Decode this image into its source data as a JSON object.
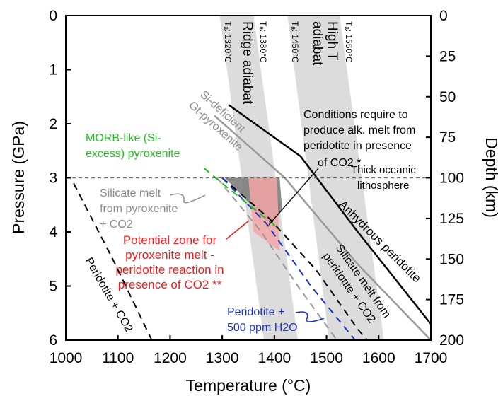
{
  "chart_data": {
    "type": "line",
    "xlabel": "Temperature (°C)",
    "ylabel": "Pressure (GPa)",
    "y2label": "Depth (km)",
    "xlim": [
      1000,
      1700
    ],
    "ylim": [
      0,
      6
    ],
    "y2lim": [
      0,
      200
    ],
    "x_ticks": [
      "1000",
      "1100",
      "1200",
      "1300",
      "1400",
      "1500",
      "1600",
      "1700"
    ],
    "y_ticks": [
      "0",
      "1",
      "2",
      "3",
      "4",
      "5",
      "6"
    ],
    "y2_ticks": [
      "0",
      "25",
      "50",
      "75",
      "100",
      "125",
      "150",
      "175",
      "200"
    ],
    "adiabat_bands": [
      {
        "label": "Ridge adiabat",
        "tp_labels": [
          "Tₐ: 1320°C",
          "Tₐ: 1380°C"
        ],
        "top": [
          1295,
          1360
        ],
        "bottom": [
          1380,
          1445
        ]
      },
      {
        "label": "High T adiabat",
        "tp_labels": [
          "Tₐ: 1450°C",
          "Tₐ: 1550°C"
        ],
        "top": [
          1425,
          1525
        ],
        "bottom": [
          1505,
          1610
        ]
      }
    ],
    "series": [
      {
        "name": "Anhydrous peridotite",
        "color": "#000000",
        "style": "solid",
        "points": [
          [
            1312,
            1.65
          ],
          [
            1450,
            2.6
          ],
          [
            1560,
            4.0
          ],
          [
            1700,
            5.7
          ]
        ]
      },
      {
        "name": "Si-deficient Gt-pyroxenite",
        "color": "#999999",
        "style": "solid",
        "points": [
          [
            1285,
            1.85
          ],
          [
            1420,
            3.0
          ],
          [
            1560,
            4.6
          ],
          [
            1700,
            6.0
          ]
        ]
      },
      {
        "name": "Silicate melt from peridotite + CO2",
        "color": "#000000",
        "style": "dashed",
        "points": [
          [
            1300,
            3.0
          ],
          [
            1390,
            3.75
          ],
          [
            1480,
            4.7
          ],
          [
            1560,
            5.8
          ],
          [
            1578,
            6.0
          ]
        ]
      },
      {
        "name": "Peridotite + 500 ppm H2O",
        "color": "#1a33cc",
        "style": "dashed",
        "points": [
          [
            1300,
            3.0
          ],
          [
            1385,
            3.85
          ],
          [
            1470,
            5.0
          ],
          [
            1555,
            6.0
          ]
        ]
      },
      {
        "name": "Silicate melt from pyroxenite + CO2",
        "color": "#999999",
        "style": "dashed",
        "points": [
          [
            1290,
            3.0
          ],
          [
            1375,
            4.0
          ],
          [
            1445,
            5.0
          ],
          [
            1520,
            6.0
          ]
        ]
      },
      {
        "name": "MORB-like (Si-excess) pyroxenite",
        "color": "#22bb22",
        "style": "dashed",
        "points": [
          [
            1265,
            2.82
          ],
          [
            1300,
            3.1
          ],
          [
            1390,
            3.8
          ],
          [
            1410,
            3.95
          ]
        ]
      },
      {
        "name": "Peridotite + CO2",
        "color": "#000000",
        "style": "dashed",
        "points": [
          [
            1015,
            3.1
          ],
          [
            1090,
            4.5
          ],
          [
            1165,
            6.0
          ]
        ]
      },
      {
        "name": "Thick oceanic lithosphere",
        "color": "#666666",
        "style": "dashed",
        "points": [
          [
            1000,
            3.0
          ],
          [
            1700,
            3.0
          ]
        ]
      }
    ],
    "zones": [
      {
        "name": "Conditions require to produce alk. melt from peridotite in presence of CO2",
        "color": "#777777",
        "polygon": [
          [
            1305,
            3.0
          ],
          [
            1410,
            3.0
          ],
          [
            1415,
            3.6
          ],
          [
            1390,
            3.85
          ]
        ]
      },
      {
        "name": "Potential zone for pyroxenite melt - peridotite reaction in presence of CO2",
        "color": "#f3a6a6",
        "polygon": [
          [
            1350,
            3.0
          ],
          [
            1405,
            3.0
          ],
          [
            1410,
            4.35
          ],
          [
            1360,
            4.0
          ]
        ]
      }
    ],
    "labels": {
      "morb_line1": "MORB-like (Si-",
      "morb_line2": "excess) pyroxenite",
      "sipyx_line1": "Silicate melt",
      "sipyx_line2": "from pyroxenite",
      "sipyx_line3": "+ CO2",
      "potential_line1": "Potential zone for",
      "potential_line2": "pyroxenite melt -",
      "potential_line3": "peridotite reaction in",
      "potential_line4": "presence of CO2 **",
      "conditions_line1": "Conditions require to",
      "conditions_line2": "produce alk. melt from",
      "conditions_line3": "peridotite in presence",
      "conditions_line4": "of CO2 *",
      "thick_line1": "Thick oceanic",
      "thick_line2": "lithosphere",
      "anhydrous": "Anhydrous peridotite",
      "sideficient_line1": "Si-deficient",
      "sideficient_line2": "Gt-pyroxenite",
      "silmelt_line1": "Silicate melt from",
      "silmelt_line2": "peridotite + CO2",
      "periCO2": "Peridotite + CO2",
      "h2o_line1": "Peridotite +",
      "h2o_line2": "500 ppm H2O"
    }
  }
}
